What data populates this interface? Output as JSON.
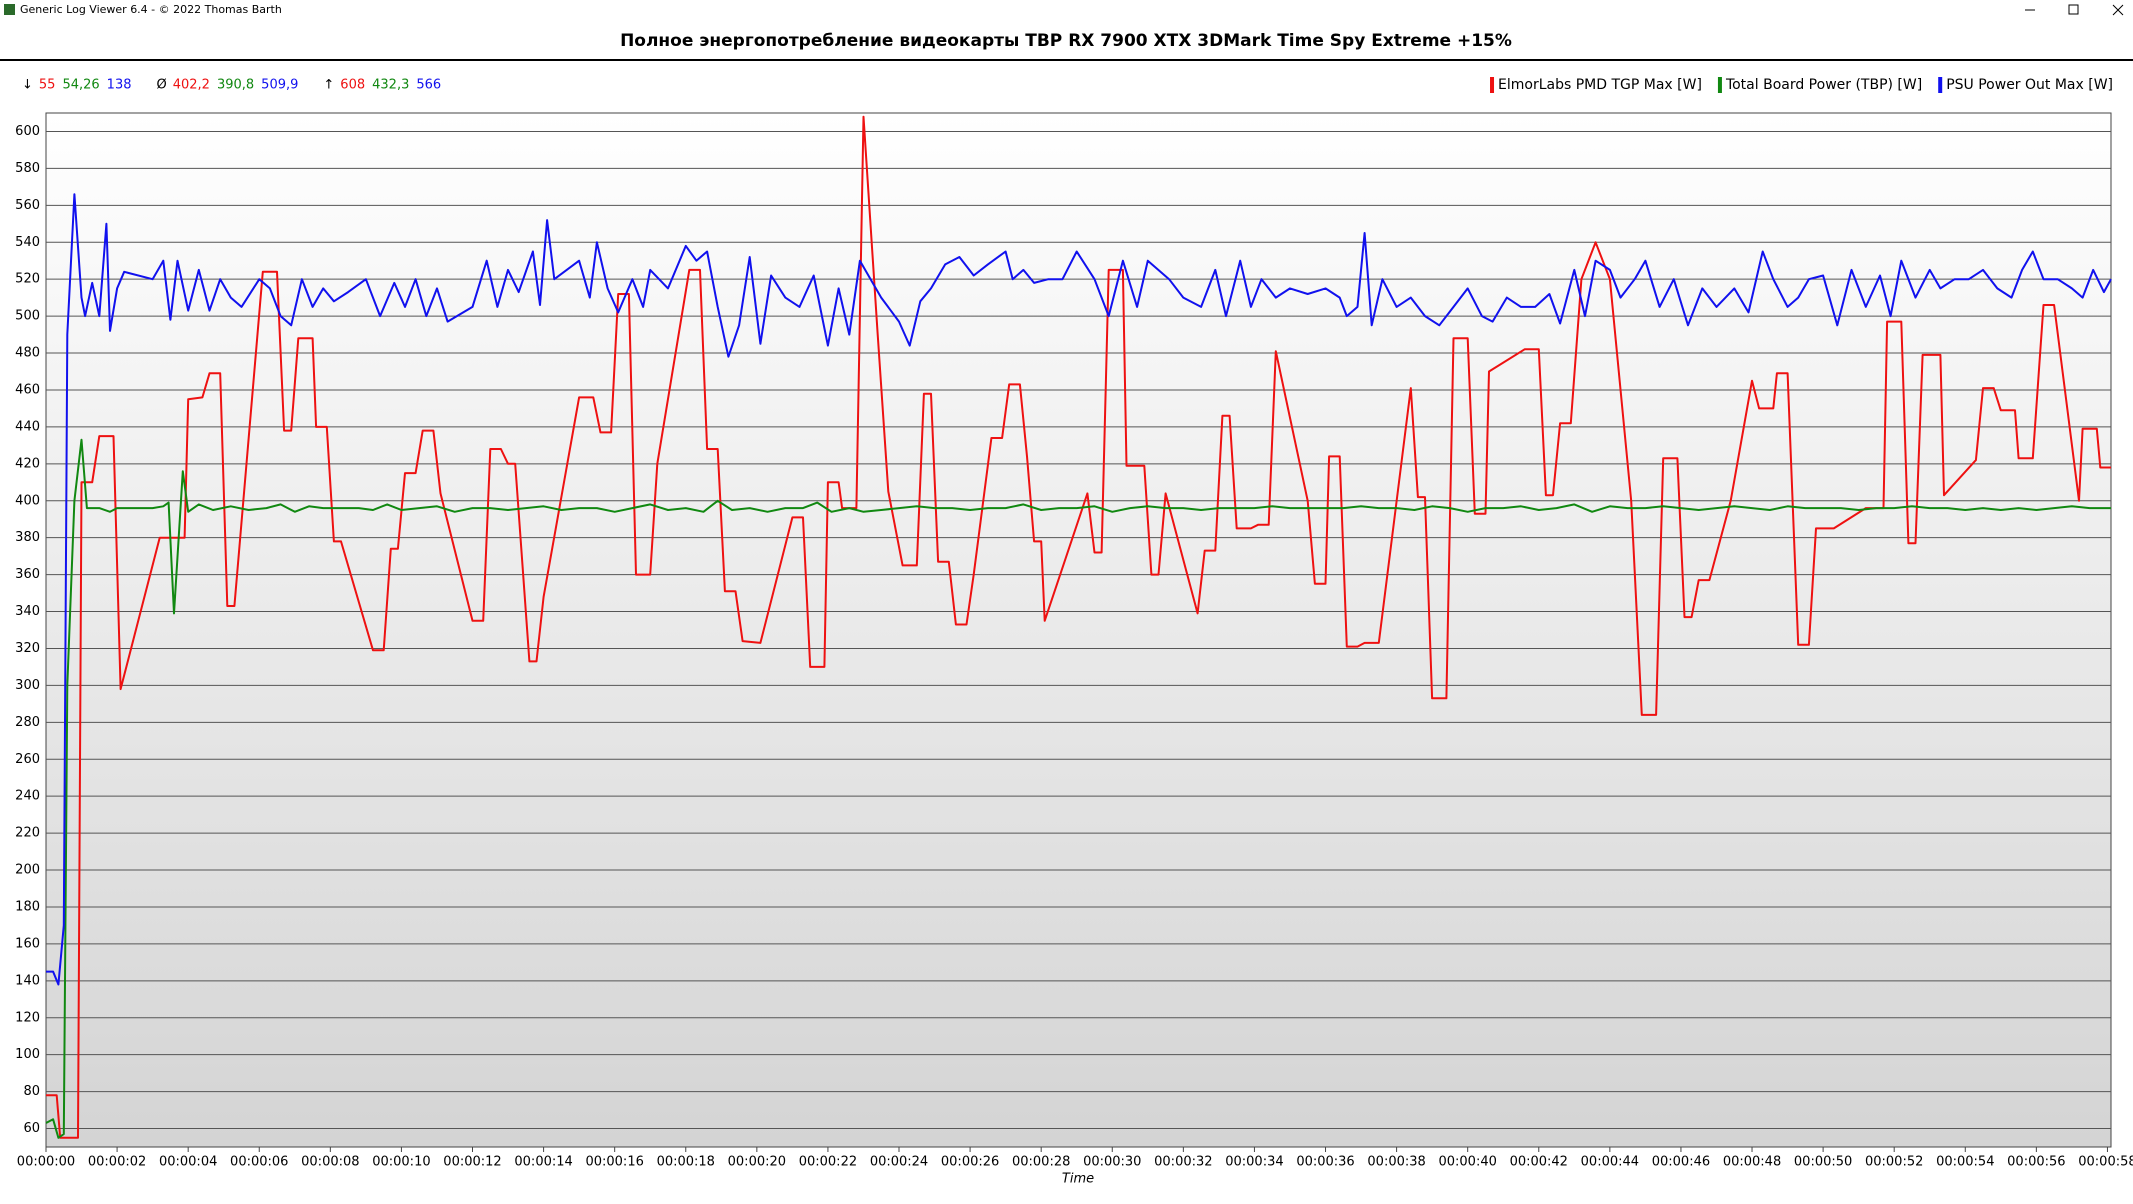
{
  "window_title": "Generic Log Viewer 6.4 - © 2022 Thomas Barth",
  "chart_data": {
    "type": "line",
    "title": "Полное энергопотребление видеокарты TBP RX 7900 XTX 3DMark Time Spy Extreme +15%",
    "x_label": "Time",
    "legend": "top-right",
    "grid": true,
    "stats": [
      {
        "symbol": "↓",
        "values": [
          "55",
          "54,26",
          "138"
        ]
      },
      {
        "symbol": "Ø",
        "values": [
          "402,2",
          "390,8",
          "509,9"
        ]
      },
      {
        "symbol": "↑",
        "values": [
          "608",
          "432,3",
          "566"
        ]
      }
    ],
    "xlim": [
      0,
      58.1
    ],
    "ylim": [
      50,
      610
    ],
    "yticks": [
      60,
      80,
      100,
      120,
      140,
      160,
      180,
      200,
      220,
      240,
      260,
      280,
      300,
      320,
      340,
      360,
      380,
      400,
      420,
      440,
      460,
      480,
      500,
      520,
      540,
      560,
      580,
      600
    ],
    "xticks": [
      {
        "value": 0,
        "label": "00:00:00"
      },
      {
        "value": 2,
        "label": "00:00:02"
      },
      {
        "value": 4,
        "label": "00:00:04"
      },
      {
        "value": 6,
        "label": "00:00:06"
      },
      {
        "value": 8,
        "label": "00:00:08"
      },
      {
        "value": 10,
        "label": "00:00:10"
      },
      {
        "value": 12,
        "label": "00:00:12"
      },
      {
        "value": 14,
        "label": "00:00:14"
      },
      {
        "value": 16,
        "label": "00:00:16"
      },
      {
        "value": 18,
        "label": "00:00:18"
      },
      {
        "value": 20,
        "label": "00:00:20"
      },
      {
        "value": 22,
        "label": "00:00:22"
      },
      {
        "value": 24,
        "label": "00:00:24"
      },
      {
        "value": 26,
        "label": "00:00:26"
      },
      {
        "value": 28,
        "label": "00:00:28"
      },
      {
        "value": 30,
        "label": "00:00:30"
      },
      {
        "value": 32,
        "label": "00:00:32"
      },
      {
        "value": 34,
        "label": "00:00:34"
      },
      {
        "value": 36,
        "label": "00:00:36"
      },
      {
        "value": 38,
        "label": "00:00:38"
      },
      {
        "value": 40,
        "label": "00:00:40"
      },
      {
        "value": 42,
        "label": "00:00:42"
      },
      {
        "value": 44,
        "label": "00:00:44"
      },
      {
        "value": 46,
        "label": "00:00:46"
      },
      {
        "value": 48,
        "label": "00:00:48"
      },
      {
        "value": 50,
        "label": "00:00:50"
      },
      {
        "value": 52,
        "label": "00:00:52"
      },
      {
        "value": 54,
        "label": "00:00:54"
      },
      {
        "value": 56,
        "label": "00:00:56"
      },
      {
        "value": 58,
        "label": "00:00:58"
      }
    ],
    "series": [
      {
        "name": "ElmorLabs PMD TGP Max [W]",
        "color": "#ee1111",
        "x": [
          0,
          0.3,
          0.4,
          0.9,
          1.0,
          1.3,
          1.5,
          1.9,
          2.1,
          3.2,
          3.9,
          4.0,
          4.4,
          4.6,
          4.9,
          5.1,
          5.3,
          6.1,
          6.5,
          6.7,
          6.9,
          7.1,
          7.5,
          7.6,
          7.9,
          8.1,
          8.3,
          9.2,
          9.5,
          9.7,
          9.9,
          10.1,
          10.4,
          10.6,
          10.9,
          11.1,
          12.0,
          12.3,
          12.5,
          12.8,
          13.0,
          13.2,
          13.6,
          13.8,
          14.0,
          15.0,
          15.4,
          15.6,
          15.9,
          16.1,
          16.4,
          16.6,
          17.0,
          17.2,
          18.1,
          18.4,
          18.6,
          18.9,
          19.1,
          19.4,
          19.6,
          20.1,
          21.0,
          21.3,
          21.5,
          21.9,
          22.0,
          22.3,
          22.4,
          22.8,
          23.0,
          23.4,
          23.7,
          24.1,
          24.5,
          24.7,
          24.9,
          25.1,
          25.4,
          25.6,
          25.9,
          26.1,
          26.6,
          26.9,
          27.1,
          27.4,
          27.6,
          27.8,
          28.0,
          28.1,
          29.3,
          29.5,
          29.7,
          29.9,
          30.3,
          30.4,
          30.9,
          31.1,
          31.3,
          31.5,
          32.4,
          32.6,
          32.9,
          33.1,
          33.3,
          33.5,
          33.9,
          34.1,
          34.4,
          34.6,
          35.5,
          35.7,
          36.0,
          36.1,
          36.4,
          36.6,
          36.9,
          37.1,
          37.5,
          38.4,
          38.6,
          38.8,
          39.0,
          39.4,
          39.6,
          40.0,
          40.2,
          40.5,
          40.6,
          41.6,
          42.0,
          42.2,
          42.4,
          42.6,
          42.9,
          43.2,
          43.6,
          44.0,
          44.6,
          44.9,
          45.3,
          45.5,
          45.9,
          46.1,
          46.3,
          46.5,
          46.8,
          47.4,
          48.0,
          48.2,
          48.6,
          48.7,
          49.0,
          49.3,
          49.6,
          49.8,
          50.3,
          51.2,
          51.7,
          51.8,
          52.2,
          52.4,
          52.6,
          52.8,
          53.3,
          53.4,
          54.3,
          54.5,
          54.8,
          55.0,
          55.4,
          55.5,
          55.9,
          56.2,
          56.5,
          57.2,
          57.3,
          57.7,
          57.8,
          58.1
        ],
        "values": [
          78,
          78,
          55,
          55,
          410,
          410,
          435,
          435,
          298,
          380,
          380,
          455,
          456,
          469,
          469,
          343,
          343,
          524,
          524,
          438,
          438,
          488,
          488,
          440,
          440,
          378,
          378,
          319,
          319,
          374,
          374,
          415,
          415,
          438,
          438,
          404,
          335,
          335,
          428,
          428,
          420,
          420,
          313,
          313,
          348,
          456,
          456,
          437,
          437,
          512,
          512,
          360,
          360,
          420,
          525,
          525,
          428,
          428,
          351,
          351,
          324,
          323,
          391,
          391,
          310,
          310,
          410,
          410,
          396,
          396,
          608,
          490,
          405,
          365,
          365,
          458,
          458,
          367,
          367,
          333,
          333,
          360,
          434,
          434,
          463,
          463,
          424,
          378,
          378,
          335,
          404,
          372,
          372,
          525,
          525,
          419,
          419,
          360,
          360,
          404,
          339,
          373,
          373,
          446,
          446,
          385,
          385,
          387,
          387,
          481,
          400,
          355,
          355,
          424,
          424,
          321,
          321,
          323,
          323,
          461,
          402,
          402,
          293,
          293,
          488,
          488,
          393,
          393,
          470,
          482,
          482,
          403,
          403,
          442,
          442,
          520,
          540,
          520,
          400,
          284,
          284,
          423,
          423,
          337,
          337,
          357,
          357,
          400,
          465,
          450,
          450,
          469,
          469,
          322,
          322,
          385,
          385,
          396,
          396,
          497,
          497,
          377,
          377,
          479,
          479,
          403,
          422,
          461,
          461,
          449,
          449,
          423,
          423,
          506,
          506,
          400,
          439,
          439,
          418,
          418
        ]
      },
      {
        "name": "Total Board Power (TBP) [W]",
        "color": "#118811",
        "x": [
          0,
          0.2,
          0.35,
          0.5,
          0.6,
          0.8,
          1.0,
          1.15,
          1.5,
          1.8,
          2.0,
          2.5,
          3.0,
          3.3,
          3.45,
          3.6,
          3.85,
          4.0,
          4.3,
          4.7,
          5.2,
          5.7,
          6.2,
          6.6,
          7.0,
          7.4,
          7.8,
          8.3,
          8.8,
          9.2,
          9.6,
          10.0,
          10.5,
          11.0,
          11.5,
          12.0,
          12.5,
          13.0,
          13.5,
          14.0,
          14.5,
          15.0,
          15.5,
          16.0,
          16.5,
          17.0,
          17.5,
          18.0,
          18.5,
          18.9,
          19.3,
          19.8,
          20.3,
          20.8,
          21.3,
          21.7,
          22.1,
          22.6,
          23.0,
          23.5,
          24.0,
          24.5,
          25.0,
          25.5,
          26.0,
          26.5,
          27.0,
          27.5,
          28.0,
          28.5,
          29.0,
          29.5,
          30.0,
          30.5,
          31.0,
          31.5,
          32.0,
          32.5,
          33.0,
          33.5,
          34.0,
          34.5,
          35.0,
          35.5,
          36.0,
          36.5,
          37.0,
          37.5,
          38.0,
          38.5,
          39.0,
          39.5,
          40.0,
          40.5,
          41.0,
          41.5,
          42.0,
          42.5,
          43.0,
          43.5,
          44.0,
          44.5,
          45.0,
          45.5,
          46.0,
          46.5,
          47.0,
          47.5,
          48.0,
          48.5,
          49.0,
          49.5,
          50.0,
          50.5,
          51.0,
          51.5,
          52.0,
          52.5,
          53.0,
          53.5,
          54.0,
          54.5,
          55.0,
          55.5,
          56.0,
          56.5,
          57.0,
          57.5,
          58.1
        ],
        "values": [
          63,
          65,
          55,
          57,
          300,
          400,
          433,
          396,
          396,
          394,
          396,
          396,
          396,
          397,
          399,
          339,
          416,
          394,
          398,
          395,
          397,
          395,
          396,
          398,
          394,
          397,
          396,
          396,
          396,
          395,
          398,
          395,
          396,
          397,
          394,
          396,
          396,
          395,
          396,
          397,
          395,
          396,
          396,
          394,
          396,
          398,
          395,
          396,
          394,
          400,
          395,
          396,
          394,
          396,
          396,
          399,
          394,
          396,
          394,
          395,
          396,
          397,
          396,
          396,
          395,
          396,
          396,
          398,
          395,
          396,
          396,
          397,
          394,
          396,
          397,
          396,
          396,
          395,
          396,
          396,
          396,
          397,
          396,
          396,
          396,
          396,
          397,
          396,
          396,
          395,
          397,
          396,
          394,
          396,
          396,
          397,
          395,
          396,
          398,
          394,
          397,
          396,
          396,
          397,
          396,
          395,
          396,
          397,
          396,
          395,
          397,
          396,
          396,
          396,
          395,
          396,
          396,
          397,
          396,
          396,
          395,
          396,
          395,
          396,
          395,
          396,
          397,
          396,
          396
        ]
      },
      {
        "name": "PSU Power Out Max [W]",
        "color": "#1111ee",
        "x": [
          0,
          0.2,
          0.35,
          0.5,
          0.6,
          0.8,
          1.0,
          1.1,
          1.3,
          1.5,
          1.7,
          1.8,
          2.0,
          2.2,
          3.0,
          3.3,
          3.5,
          3.7,
          4.0,
          4.3,
          4.6,
          4.9,
          5.2,
          5.5,
          6.0,
          6.3,
          6.6,
          6.9,
          7.2,
          7.5,
          7.8,
          8.1,
          8.5,
          9.0,
          9.4,
          9.8,
          10.1,
          10.4,
          10.7,
          11.0,
          11.3,
          12.0,
          12.4,
          12.7,
          13.0,
          13.3,
          13.7,
          13.9,
          14.1,
          14.3,
          15.0,
          15.3,
          15.5,
          15.8,
          16.1,
          16.5,
          16.8,
          17.0,
          17.5,
          18.0,
          18.3,
          18.6,
          18.9,
          19.2,
          19.5,
          19.8,
          20.1,
          20.4,
          20.8,
          21.2,
          21.6,
          22.0,
          22.3,
          22.6,
          22.9,
          23.5,
          24.0,
          24.3,
          24.6,
          24.9,
          25.3,
          25.7,
          26.1,
          26.5,
          27.0,
          27.2,
          27.5,
          27.8,
          28.2,
          28.6,
          29.0,
          29.5,
          29.9,
          30.3,
          30.7,
          31.0,
          31.6,
          32.0,
          32.5,
          32.9,
          33.2,
          33.6,
          33.9,
          34.2,
          34.6,
          35.0,
          35.5,
          36.0,
          36.4,
          36.6,
          36.9,
          37.1,
          37.3,
          37.6,
          38.0,
          38.4,
          38.8,
          39.2,
          39.6,
          40.0,
          40.4,
          40.7,
          41.1,
          41.5,
          41.9,
          42.3,
          42.6,
          43.0,
          43.3,
          43.6,
          44.0,
          44.3,
          44.7,
          45.0,
          45.4,
          45.8,
          46.2,
          46.6,
          47.0,
          47.5,
          47.9,
          48.3,
          48.6,
          49.0,
          49.3,
          49.6,
          50.0,
          50.4,
          50.8,
          51.2,
          51.6,
          51.9,
          52.2,
          52.6,
          53.0,
          53.3,
          53.7,
          54.1,
          54.5,
          54.9,
          55.3,
          55.6,
          55.9,
          56.2,
          56.6,
          57.0,
          57.3,
          57.6,
          57.9,
          58.1
        ],
        "values": [
          145,
          145,
          138,
          170,
          490,
          566,
          510,
          500,
          518,
          500,
          550,
          492,
          515,
          524,
          520,
          530,
          498,
          530,
          503,
          525,
          503,
          520,
          510,
          505,
          520,
          515,
          500,
          495,
          520,
          505,
          515,
          508,
          513,
          520,
          500,
          518,
          505,
          520,
          500,
          515,
          497,
          505,
          530,
          505,
          525,
          513,
          535,
          506,
          552,
          520,
          530,
          510,
          540,
          515,
          502,
          520,
          505,
          525,
          515,
          538,
          530,
          535,
          505,
          478,
          495,
          532,
          485,
          522,
          510,
          505,
          522,
          484,
          515,
          490,
          530,
          510,
          497,
          484,
          508,
          515,
          528,
          532,
          522,
          528,
          535,
          520,
          525,
          518,
          520,
          520,
          535,
          520,
          500,
          530,
          505,
          530,
          520,
          510,
          505,
          525,
          500,
          530,
          505,
          520,
          510,
          515,
          512,
          515,
          510,
          500,
          505,
          545,
          495,
          520,
          505,
          510,
          500,
          495,
          505,
          515,
          500,
          497,
          510,
          505,
          505,
          512,
          496,
          525,
          500,
          530,
          525,
          510,
          520,
          530,
          505,
          520,
          495,
          515,
          505,
          515,
          502,
          535,
          520,
          505,
          510,
          520,
          522,
          495,
          525,
          505,
          522,
          500,
          530,
          510,
          525,
          515,
          520,
          520,
          525,
          515,
          510,
          525,
          535,
          520,
          520,
          515,
          510,
          525,
          513,
          520
        ]
      }
    ]
  }
}
